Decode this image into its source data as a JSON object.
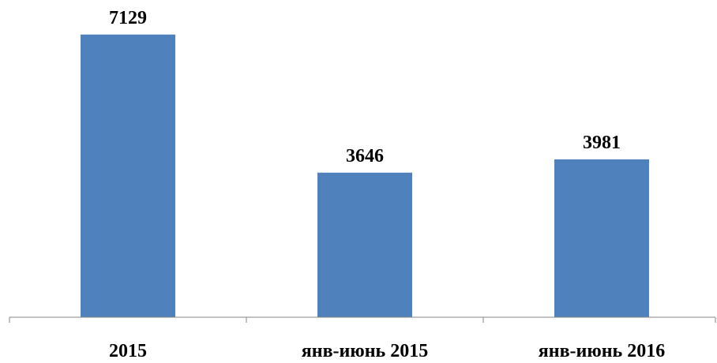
{
  "chart_data": {
    "type": "bar",
    "categories": [
      "2015",
      "янв-июнь 2015",
      "янв-июнь 2016"
    ],
    "values": [
      7129,
      3646,
      3981
    ],
    "data_labels": [
      "7129",
      "3646",
      "3981"
    ],
    "title": "",
    "xlabel": "",
    "ylabel": "",
    "ylim": [
      0,
      8000
    ],
    "grid": false,
    "legend": "none",
    "bar_color": "#4F81BD",
    "axis_color": "#868686"
  }
}
